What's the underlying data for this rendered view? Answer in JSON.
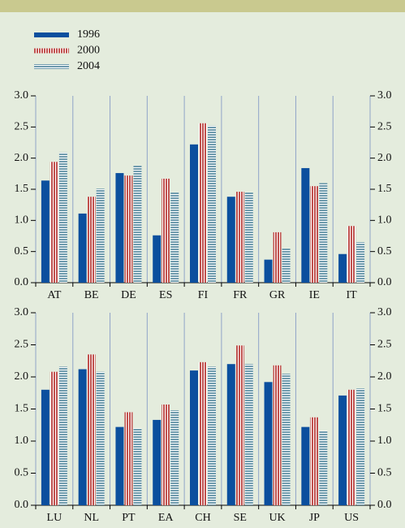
{
  "chart_data": [
    {
      "type": "bar",
      "categories": [
        "AT",
        "BE",
        "DE",
        "ES",
        "FI",
        "FR",
        "GR",
        "IE",
        "IT"
      ],
      "series": [
        {
          "name": "1996",
          "color": "#0b4f9e",
          "values": [
            1.64,
            1.11,
            1.76,
            0.76,
            2.22,
            1.38,
            0.37,
            1.84,
            0.46
          ]
        },
        {
          "name": "2000",
          "color": "#c0504d",
          "values": [
            1.94,
            1.38,
            1.72,
            1.67,
            2.56,
            1.46,
            0.81,
            1.55,
            0.91
          ]
        },
        {
          "name": "2004",
          "color": "#6f9bad",
          "values": [
            2.09,
            1.51,
            1.88,
            1.45,
            2.52,
            1.45,
            0.55,
            1.6,
            0.65
          ]
        }
      ],
      "ylim": [
        0,
        3
      ],
      "yticks": [
        {
          "value": 0,
          "label": "0.0"
        },
        {
          "value": 0.5,
          "label": "0.5"
        },
        {
          "value": 1,
          "label": "1.0"
        },
        {
          "value": 1.5,
          "label": "1.5"
        },
        {
          "value": 2,
          "label": "2.0"
        },
        {
          "value": 2.5,
          "label": "2.5"
        },
        {
          "value": 3,
          "label": "3.0"
        }
      ]
    },
    {
      "type": "bar",
      "categories": [
        "LU",
        "NL",
        "PT",
        "EA",
        "CH",
        "SE",
        "UK",
        "JP",
        "US"
      ],
      "series": [
        {
          "color": "#0b4f9e",
          "values": [
            1.8,
            2.12,
            1.22,
            1.33,
            2.1,
            2.2,
            1.92,
            1.22,
            1.71
          ]
        },
        {
          "color": "#c0504d",
          "values": [
            2.08,
            2.35,
            1.45,
            1.57,
            2.23,
            2.49,
            2.18,
            1.37,
            1.8
          ]
        },
        {
          "color": "#6f9bad",
          "values": [
            2.16,
            2.08,
            1.2,
            1.48,
            2.16,
            2.2,
            2.05,
            1.16,
            1.82
          ]
        }
      ],
      "ylim": [
        0,
        3
      ],
      "yticks": [
        {
          "value": 0,
          "label": "0.0"
        },
        {
          "value": 0.5,
          "label": "0.5"
        },
        {
          "value": 1,
          "label": "1.0"
        },
        {
          "value": 1.5,
          "label": "1.5"
        },
        {
          "value": 2,
          "label": "2.0"
        },
        {
          "value": 2.5,
          "label": "2.5"
        },
        {
          "value": 3,
          "label": "3.0"
        }
      ]
    }
  ]
}
